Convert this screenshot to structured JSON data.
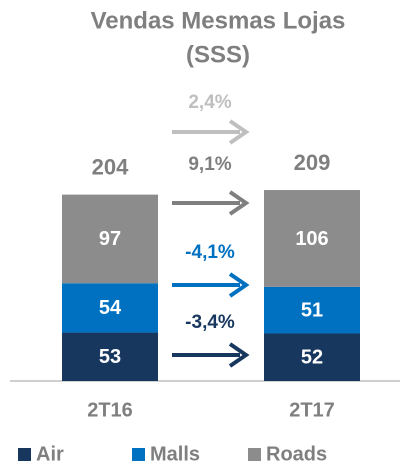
{
  "chart_data": {
    "type": "stacked_bar",
    "title": [
      "Vendas Mesmas Lojas",
      "(SSS)"
    ],
    "categories": [
      "2T16",
      "2T17"
    ],
    "series": [
      {
        "name": "Air",
        "color": "#17375e",
        "values": [
          53,
          52
        ]
      },
      {
        "name": "Malls",
        "color": "#0070c0",
        "values": [
          54,
          51
        ]
      },
      {
        "name": "Roads",
        "color": "#8c8c8c",
        "values": [
          97,
          106
        ]
      }
    ],
    "totals": [
      204,
      209
    ],
    "changes": [
      {
        "value": 2.4,
        "label": "2,4%",
        "color": "#bfbfbf"
      },
      {
        "value": 9.1,
        "label": "9,1%",
        "color": "#7f7f7f"
      },
      {
        "value": -4.1,
        "label": "-4,1%",
        "color": "#0070c0"
      },
      {
        "value": -3.4,
        "label": "-3,4%",
        "color": "#17375e"
      }
    ],
    "ylim": [
      0,
      220
    ],
    "legend": "bottom"
  }
}
